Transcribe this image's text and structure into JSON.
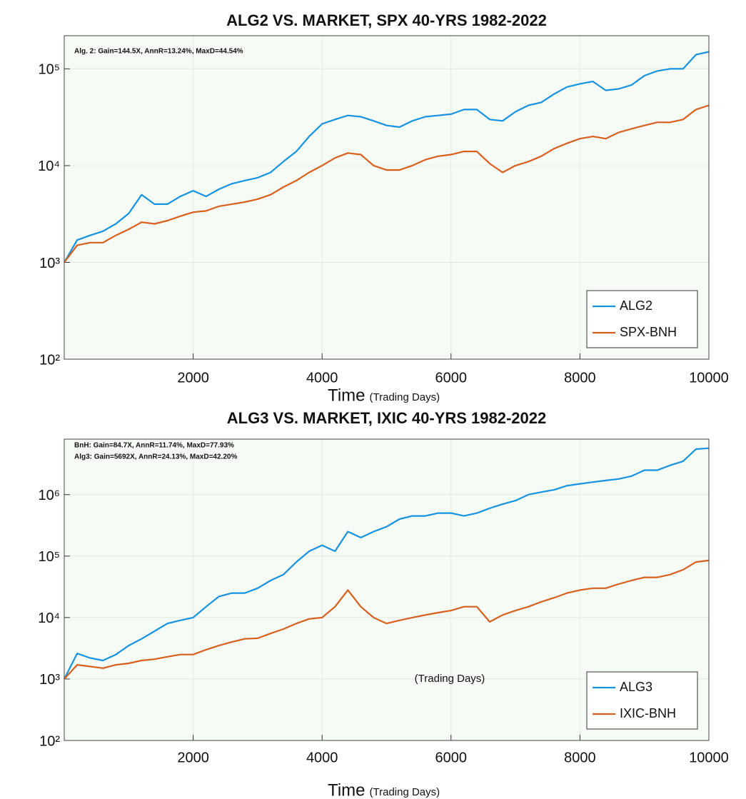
{
  "chart_data": [
    {
      "type": "line",
      "title": "ALG2 VS. MARKET, SPX 40-YRS 1982-2022",
      "annotations": [
        "Alg. 2: Gain=144.5X, AnnR=13.24%, MaxD=44.54%"
      ],
      "xlabel": "Time",
      "xlabel_note": "(Trading Days)",
      "x": [
        0,
        200,
        400,
        600,
        800,
        1000,
        1200,
        1400,
        1600,
        1800,
        2000,
        2200,
        2400,
        2600,
        2800,
        3000,
        3200,
        3400,
        3600,
        3800,
        4000,
        4200,
        4400,
        4600,
        4800,
        5000,
        5200,
        5400,
        5600,
        5800,
        6000,
        6200,
        6400,
        6600,
        6800,
        7000,
        7200,
        7400,
        7600,
        7800,
        8000,
        8200,
        8400,
        8600,
        8800,
        9000,
        9200,
        9400,
        9600,
        9800,
        10000
      ],
      "series": [
        {
          "name": "ALG2",
          "color": "#1592e0",
          "values": [
            1000,
            1700,
            1900,
            2100,
            2500,
            3200,
            5000,
            4000,
            4000,
            4800,
            5500,
            4800,
            5700,
            6500,
            7000,
            7500,
            8500,
            11000,
            14000,
            20000,
            27000,
            30000,
            33000,
            32000,
            29000,
            26000,
            25000,
            29000,
            32000,
            33000,
            34000,
            38000,
            38000,
            30000,
            29000,
            36000,
            42000,
            45000,
            55000,
            65000,
            70000,
            74000,
            60000,
            62000,
            68000,
            85000,
            95000,
            100000,
            100000,
            140000,
            150000
          ]
        },
        {
          "name": "SPX-BNH",
          "color": "#d6601d",
          "values": [
            1000,
            1500,
            1600,
            1600,
            1900,
            2200,
            2600,
            2500,
            2700,
            3000,
            3300,
            3400,
            3800,
            4000,
            4200,
            4500,
            5000,
            6000,
            7000,
            8500,
            10000,
            12000,
            13500,
            13000,
            10000,
            9000,
            9000,
            10000,
            11500,
            12500,
            13000,
            14000,
            14000,
            10500,
            8500,
            10000,
            11000,
            12500,
            15000,
            17000,
            19000,
            20000,
            19000,
            22000,
            24000,
            26000,
            28000,
            28000,
            30000,
            38000,
            42000
          ]
        }
      ],
      "xlim": [
        0,
        10000
      ],
      "xticks": [
        2000,
        4000,
        6000,
        8000,
        10000
      ],
      "ylim": [
        100,
        220000
      ],
      "log_y": true,
      "yticks": [
        {
          "value": 100,
          "label": "10²"
        },
        {
          "value": 1000,
          "label": "10³"
        },
        {
          "value": 10000,
          "label": "10⁴"
        },
        {
          "value": 100000,
          "label": "10⁵"
        }
      ],
      "grid": true,
      "legend": "lower right"
    },
    {
      "type": "line",
      "title": "ALG3 VS. MARKET, IXIC 40-YRS 1982-2022",
      "annotations": [
        "BnH: Gain=84.7X, AnnR=11.74%, MaxD=77.93%",
        "Alg3: Gain=5692X, AnnR=24.13%, MaxD=42.20%"
      ],
      "note": "(Trading Days)",
      "xlabel": "Time",
      "xlabel_note": "(Trading Days)",
      "x": [
        0,
        200,
        400,
        600,
        800,
        1000,
        1200,
        1400,
        1600,
        1800,
        2000,
        2200,
        2400,
        2600,
        2800,
        3000,
        3200,
        3400,
        3600,
        3800,
        4000,
        4200,
        4400,
        4600,
        4800,
        5000,
        5200,
        5400,
        5600,
        5800,
        6000,
        6200,
        6400,
        6600,
        6800,
        7000,
        7200,
        7400,
        7600,
        7800,
        8000,
        8200,
        8400,
        8600,
        8800,
        9000,
        9200,
        9400,
        9600,
        9800,
        10000
      ],
      "series": [
        {
          "name": "ALG3",
          "color": "#1592e0",
          "values": [
            1000,
            2600,
            2200,
            2000,
            2500,
            3500,
            4500,
            6000,
            8000,
            9000,
            10000,
            15000,
            22000,
            25000,
            25000,
            30000,
            40000,
            50000,
            80000,
            120000,
            150000,
            120000,
            250000,
            200000,
            250000,
            300000,
            400000,
            450000,
            450000,
            500000,
            500000,
            450000,
            500000,
            600000,
            700000,
            800000,
            1000000,
            1100000,
            1200000,
            1400000,
            1500000,
            1600000,
            1700000,
            1800000,
            2000000,
            2500000,
            2500000,
            3000000,
            3500000,
            5500000,
            5700000
          ]
        },
        {
          "name": "IXIC-BNH",
          "color": "#d6601d",
          "values": [
            1000,
            1700,
            1600,
            1500,
            1700,
            1800,
            2000,
            2100,
            2300,
            2500,
            2500,
            3000,
            3500,
            4000,
            4500,
            4600,
            5500,
            6500,
            8000,
            9500,
            10000,
            15000,
            28000,
            15000,
            10000,
            8000,
            9000,
            10000,
            11000,
            12000,
            13000,
            15000,
            15000,
            8500,
            11000,
            13000,
            15000,
            18000,
            21000,
            25000,
            28000,
            30000,
            30000,
            35000,
            40000,
            45000,
            45000,
            50000,
            60000,
            80000,
            85000
          ]
        }
      ],
      "xlim": [
        0,
        10000
      ],
      "xticks": [
        2000,
        4000,
        6000,
        8000,
        10000
      ],
      "ylim": [
        100,
        8000000
      ],
      "log_y": true,
      "yticks": [
        {
          "value": 100,
          "label": "10²"
        },
        {
          "value": 1000,
          "label": "10³"
        },
        {
          "value": 10000,
          "label": "10⁴"
        },
        {
          "value": 100000,
          "label": "10⁵"
        },
        {
          "value": 1000000,
          "label": "10⁶"
        }
      ],
      "grid": true,
      "legend": "lower right"
    }
  ]
}
